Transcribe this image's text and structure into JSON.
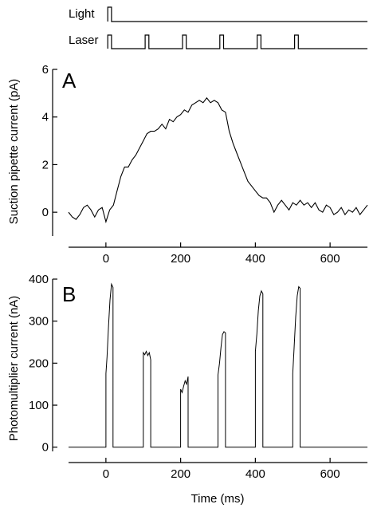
{
  "colors": {
    "ink": "#000000",
    "background": "#ffffff"
  },
  "stimulus": {
    "light_label": "Light",
    "laser_label": "Laser",
    "light_pulse_ms": [
      5,
      15
    ],
    "laser_pulses_ms": [
      [
        5,
        15
      ],
      [
        105,
        115
      ],
      [
        205,
        215
      ],
      [
        305,
        315
      ],
      [
        405,
        415
      ],
      [
        505,
        515
      ]
    ]
  },
  "chart_data": [
    {
      "type": "line",
      "panel_label": "A",
      "ylabel": "Suction pipette current (pA)",
      "xlabel": "",
      "xlim": [
        -100,
        700
      ],
      "ylim": [
        -1.0,
        6.0
      ],
      "x_ticks": [
        0,
        200,
        400,
        600
      ],
      "y_ticks": [
        0,
        2,
        4,
        6
      ],
      "grid": false,
      "series": [
        {
          "x": [
            -100,
            -90,
            -80,
            -70,
            -60,
            -50,
            -40,
            -30,
            -20,
            -10,
            0,
            10,
            20,
            30,
            40,
            50,
            60,
            70,
            80,
            90,
            100,
            110,
            120,
            130,
            140,
            150,
            160,
            170,
            180,
            190,
            200,
            210,
            220,
            230,
            240,
            250,
            260,
            270,
            280,
            290,
            300,
            310,
            320,
            330,
            340,
            350,
            360,
            370,
            380,
            390,
            400,
            410,
            420,
            430,
            440,
            450,
            460,
            470,
            480,
            490,
            500,
            510,
            520,
            530,
            540,
            550,
            560,
            570,
            580,
            590,
            600,
            610,
            620,
            630,
            640,
            650,
            660,
            670,
            680,
            690,
            700
          ],
          "y": [
            0.0,
            -0.2,
            -0.3,
            -0.1,
            0.2,
            0.3,
            0.1,
            -0.2,
            0.1,
            0.2,
            -0.4,
            0.1,
            0.3,
            0.9,
            1.5,
            1.9,
            1.9,
            2.2,
            2.4,
            2.7,
            3.0,
            3.3,
            3.4,
            3.4,
            3.5,
            3.7,
            3.5,
            3.9,
            3.8,
            4.0,
            4.1,
            4.3,
            4.2,
            4.5,
            4.6,
            4.7,
            4.6,
            4.8,
            4.6,
            4.7,
            4.6,
            4.3,
            4.2,
            3.4,
            2.9,
            2.5,
            2.1,
            1.7,
            1.3,
            1.1,
            0.9,
            0.7,
            0.6,
            0.6,
            0.4,
            0.0,
            0.3,
            0.5,
            0.3,
            0.1,
            0.4,
            0.3,
            0.5,
            0.3,
            0.4,
            0.2,
            0.4,
            0.1,
            0.0,
            0.3,
            0.2,
            -0.1,
            0.0,
            0.2,
            -0.1,
            0.1,
            0.0,
            0.2,
            -0.1,
            0.1,
            0.3
          ]
        }
      ]
    },
    {
      "type": "line",
      "panel_label": "B",
      "ylabel": "Photomultiplier current (nA)",
      "xlabel": "Time (ms)",
      "xlim": [
        -100,
        700
      ],
      "ylim": [
        -10,
        400
      ],
      "x_ticks": [
        0,
        200,
        400,
        600
      ],
      "y_ticks": [
        0,
        100,
        200,
        300,
        400
      ],
      "grid": false,
      "series": [
        {
          "x": [
            -100,
            0,
            0,
            3,
            7,
            11,
            15,
            19,
            19,
            100,
            100,
            104,
            108,
            112,
            116,
            120,
            120,
            200,
            200,
            204,
            208,
            212,
            216,
            220,
            220,
            300,
            300,
            304,
            308,
            312,
            316,
            320,
            320,
            400,
            400,
            404,
            408,
            412,
            416,
            420,
            420,
            500,
            500,
            504,
            508,
            512,
            516,
            520,
            520,
            700
          ],
          "y": [
            0,
            0,
            175,
            215,
            290,
            350,
            388,
            380,
            0,
            0,
            225,
            220,
            228,
            218,
            225,
            208,
            0,
            0,
            138,
            130,
            145,
            158,
            150,
            168,
            0,
            0,
            172,
            200,
            238,
            268,
            275,
            272,
            0,
            0,
            228,
            270,
            325,
            360,
            372,
            365,
            0,
            0,
            175,
            240,
            310,
            360,
            382,
            378,
            0,
            0
          ]
        }
      ]
    }
  ]
}
